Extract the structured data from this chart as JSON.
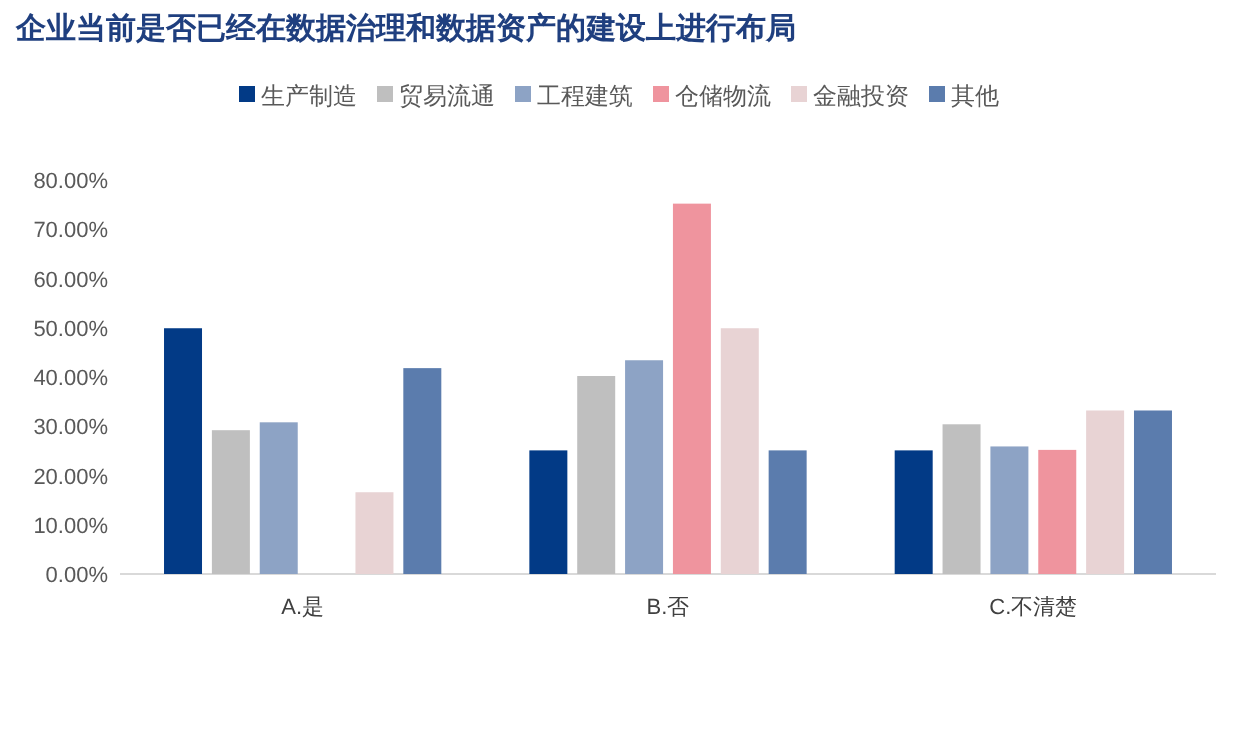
{
  "chart_data": {
    "type": "bar",
    "title": "企业当前是否已经在数据治理和数据资产的建设上进行布局",
    "categories": [
      "A.是",
      "B.否",
      "C.不清楚"
    ],
    "series": [
      {
        "name": "生产制造",
        "color": "#023a86",
        "values": [
          49.9,
          25.1,
          25.1
        ]
      },
      {
        "name": "贸易流通",
        "color": "#bfbfbf",
        "values": [
          29.2,
          40.2,
          30.4
        ]
      },
      {
        "name": "工程建筑",
        "color": "#8da3c5",
        "values": [
          30.8,
          43.4,
          25.9
        ]
      },
      {
        "name": "仓储物流",
        "color": "#ef949e",
        "values": [
          null,
          75.2,
          25.2
        ]
      },
      {
        "name": "金融投资",
        "color": "#e8d3d4",
        "values": [
          16.6,
          49.9,
          33.2
        ]
      },
      {
        "name": "其他",
        "color": "#5b7cad",
        "values": [
          41.8,
          25.1,
          33.2
        ]
      }
    ],
    "ylim": [
      0,
      80
    ],
    "yticks": [
      {
        "value": 0,
        "label": "0.00%"
      },
      {
        "value": 10,
        "label": "10.00%"
      },
      {
        "value": 20,
        "label": "20.00%"
      },
      {
        "value": 30,
        "label": "30.00%"
      },
      {
        "value": 40,
        "label": "40.00%"
      },
      {
        "value": 50,
        "label": "50.00%"
      },
      {
        "value": 60,
        "label": "60.00%"
      },
      {
        "value": 70,
        "label": "70.00%"
      },
      {
        "value": 80,
        "label": "80.00%"
      }
    ],
    "legend": "top"
  }
}
